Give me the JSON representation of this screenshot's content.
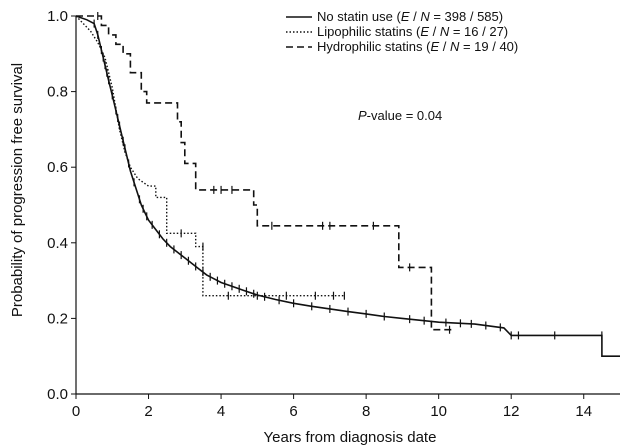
{
  "chart_data": {
    "type": "line",
    "xlabel": "Years from diagnosis date",
    "ylabel": "Probability of progression free survival",
    "xlim": [
      0,
      15
    ],
    "ylim": [
      0,
      1.0
    ],
    "x_ticks": [
      "0",
      "2",
      "4",
      "6",
      "8",
      "10",
      "12",
      "14"
    ],
    "y_ticks": [
      "0.0",
      "0.2",
      "0.4",
      "0.6",
      "0.8",
      "1.0"
    ],
    "grid": false,
    "legend_position": "top-right",
    "annotation": {
      "prefix": "P",
      "text": "-value = 0.04"
    },
    "series": [
      {
        "key": "none",
        "legend": {
          "pre": "No statin use (",
          "e": "E",
          "mid": " / ",
          "n": "N",
          "post": " = 398 / 585)"
        },
        "style": "solid",
        "points": [
          [
            0,
            1.0
          ],
          [
            0.3,
            0.99
          ],
          [
            0.5,
            0.98
          ],
          [
            0.6,
            0.95
          ],
          [
            0.7,
            0.91
          ],
          [
            0.8,
            0.87
          ],
          [
            0.9,
            0.83
          ],
          [
            1.0,
            0.79
          ],
          [
            1.1,
            0.75
          ],
          [
            1.2,
            0.71
          ],
          [
            1.3,
            0.67
          ],
          [
            1.4,
            0.63
          ],
          [
            1.5,
            0.59
          ],
          [
            1.6,
            0.56
          ],
          [
            1.7,
            0.53
          ],
          [
            1.8,
            0.5
          ],
          [
            1.9,
            0.48
          ],
          [
            2.0,
            0.46
          ],
          [
            2.2,
            0.435
          ],
          [
            2.4,
            0.41
          ],
          [
            2.6,
            0.39
          ],
          [
            2.8,
            0.375
          ],
          [
            3.0,
            0.36
          ],
          [
            3.2,
            0.345
          ],
          [
            3.4,
            0.33
          ],
          [
            3.6,
            0.315
          ],
          [
            3.8,
            0.305
          ],
          [
            4.0,
            0.295
          ],
          [
            4.3,
            0.285
          ],
          [
            4.6,
            0.275
          ],
          [
            5.0,
            0.262
          ],
          [
            5.5,
            0.25
          ],
          [
            6.0,
            0.24
          ],
          [
            6.5,
            0.232
          ],
          [
            7.0,
            0.225
          ],
          [
            7.5,
            0.218
          ],
          [
            8.0,
            0.212
          ],
          [
            8.5,
            0.205
          ],
          [
            9.0,
            0.2
          ],
          [
            9.5,
            0.195
          ],
          [
            10.0,
            0.19
          ],
          [
            11.0,
            0.185
          ],
          [
            11.8,
            0.175
          ],
          [
            12.0,
            0.155
          ],
          [
            14.5,
            0.155
          ],
          [
            14.5,
            0.1
          ],
          [
            15.0,
            0.1
          ]
        ],
        "censor": [
          0.5,
          0.6,
          0.7,
          0.75,
          0.8,
          0.85,
          0.9,
          1.0,
          1.1,
          1.15,
          1.2,
          1.3,
          1.35,
          1.45,
          1.6,
          1.75,
          1.85,
          1.95,
          2.1,
          2.3,
          2.5,
          2.7,
          2.9,
          3.1,
          3.3,
          3.5,
          3.7,
          3.9,
          4.1,
          4.3,
          4.5,
          4.7,
          4.9,
          5.2,
          5.6,
          6.0,
          6.5,
          7.0,
          7.5,
          8.0,
          8.5,
          9.2,
          9.6,
          10.2,
          10.6,
          10.9,
          11.3,
          11.7,
          12.0,
          12.2,
          13.2,
          14.5
        ]
      },
      {
        "key": "lipo",
        "legend": {
          "pre": "Lipophilic statins (",
          "e": "E",
          "mid": " / ",
          "n": "N",
          "post": " = 16 / 27)"
        },
        "style": "dotted",
        "points": [
          [
            0,
            1.0
          ],
          [
            0.4,
            0.96
          ],
          [
            0.6,
            0.93
          ],
          [
            0.8,
            0.89
          ],
          [
            1.0,
            0.81
          ],
          [
            1.2,
            0.7
          ],
          [
            1.35,
            0.64
          ],
          [
            1.5,
            0.6
          ],
          [
            1.7,
            0.57
          ],
          [
            2.0,
            0.55
          ],
          [
            2.2,
            0.55
          ],
          [
            2.2,
            0.52
          ],
          [
            2.5,
            0.52
          ],
          [
            2.5,
            0.425
          ],
          [
            3.3,
            0.425
          ],
          [
            3.3,
            0.39
          ],
          [
            3.5,
            0.39
          ],
          [
            3.5,
            0.26
          ],
          [
            7.4,
            0.26
          ]
        ],
        "censor": [
          2.9,
          3.5,
          4.2,
          5.0,
          5.8,
          6.6,
          7.1,
          7.4
        ]
      },
      {
        "key": "hydro",
        "legend": {
          "pre": "Hydrophilic statins (",
          "e": "E",
          "mid": " / ",
          "n": "N",
          "post": " = 19 / 40)"
        },
        "style": "dashed",
        "points": [
          [
            0,
            1.0
          ],
          [
            0.7,
            1.0
          ],
          [
            0.7,
            0.975
          ],
          [
            0.9,
            0.975
          ],
          [
            0.9,
            0.95
          ],
          [
            1.1,
            0.95
          ],
          [
            1.1,
            0.925
          ],
          [
            1.3,
            0.925
          ],
          [
            1.3,
            0.9
          ],
          [
            1.5,
            0.9
          ],
          [
            1.5,
            0.85
          ],
          [
            1.8,
            0.85
          ],
          [
            1.8,
            0.8
          ],
          [
            1.95,
            0.8
          ],
          [
            1.95,
            0.77
          ],
          [
            2.8,
            0.77
          ],
          [
            2.8,
            0.72
          ],
          [
            2.9,
            0.72
          ],
          [
            2.9,
            0.665
          ],
          [
            3.0,
            0.665
          ],
          [
            3.0,
            0.61
          ],
          [
            3.3,
            0.61
          ],
          [
            3.3,
            0.54
          ],
          [
            4.9,
            0.54
          ],
          [
            4.9,
            0.5
          ],
          [
            5.0,
            0.5
          ],
          [
            5.0,
            0.445
          ],
          [
            8.9,
            0.445
          ],
          [
            8.9,
            0.335
          ],
          [
            9.8,
            0.335
          ],
          [
            9.8,
            0.17
          ],
          [
            10.4,
            0.17
          ]
        ],
        "censor": [
          0.6,
          3.8,
          4.0,
          4.3,
          5.4,
          6.8,
          7.0,
          8.2,
          9.2,
          10.3
        ]
      }
    ]
  }
}
